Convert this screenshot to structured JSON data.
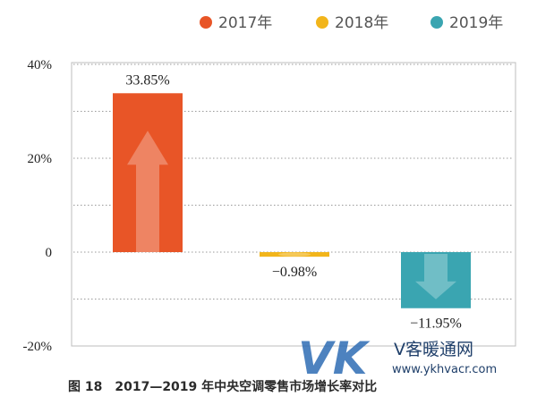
{
  "chart_data": {
    "type": "bar",
    "categories": [
      "2017年",
      "2018年",
      "2019年"
    ],
    "values": [
      33.85,
      -0.98,
      -11.95
    ],
    "value_labels": [
      "33.85%",
      "−0.98%",
      "−11.95%"
    ],
    "colors": [
      "#e85527",
      "#f2b51b",
      "#3aa5b1"
    ],
    "legend": [
      "2017年",
      "2018年",
      "2019年"
    ],
    "legend_position": "top-right",
    "yticks": [
      -20,
      0,
      20,
      40
    ],
    "ytick_labels": [
      "-20%",
      "0",
      "20%",
      "40%"
    ],
    "ylim": [
      -20,
      40
    ],
    "grid": true,
    "xlabel": "",
    "ylabel": ""
  },
  "caption": "图 18　2017—2019 年中央空调零售市场增长率对比",
  "watermark": {
    "brand": "VK",
    "site_name": "V客暖通网",
    "url": "www.ykhvacr.com"
  }
}
